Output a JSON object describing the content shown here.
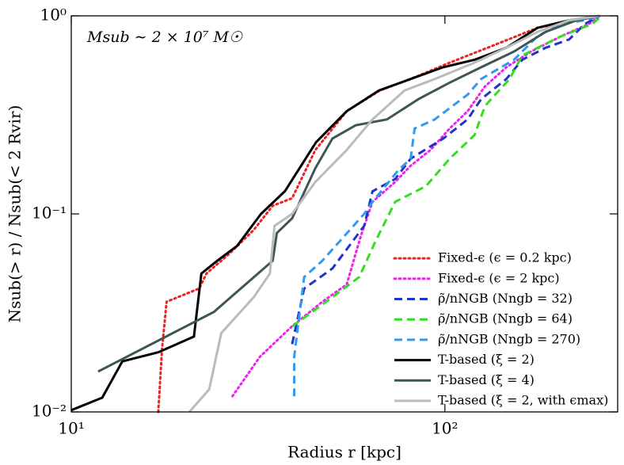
{
  "chart_data": {
    "type": "line",
    "annotation": "Msub ∼ 2 × 10⁷ M☉",
    "x_label": "Radius r [kpc]",
    "y_label": "Nsub(> r) / Nsub(< 2 Rvir)",
    "xlog": true,
    "ylog": true,
    "xlim": [
      10,
      290
    ],
    "ylim": [
      0.01,
      1
    ],
    "xticks": [
      {
        "value": 10,
        "label": "10¹"
      },
      {
        "value": 100,
        "label": "10²"
      }
    ],
    "yticks": [
      {
        "value": 0.01,
        "label": "10⁻²"
      },
      {
        "value": 0.1,
        "label": "10⁻¹"
      },
      {
        "value": 1,
        "label": "10⁰"
      }
    ],
    "legend": "lower right",
    "series": [
      {
        "name": "Fixed-ϵ (ϵ = 0.2 kpc)",
        "color": "#ee2222",
        "linestyle": "dotted",
        "x": [
          17.1,
          17.5,
          18,
          22,
          23,
          26.5,
          30.8,
          34.6,
          39,
          45,
          54.6,
          67,
          81,
          103,
          130,
          177,
          260
        ],
        "values": [
          0.01,
          0.021,
          0.036,
          0.042,
          0.05,
          0.063,
          0.083,
          0.11,
          0.12,
          0.21,
          0.33,
          0.42,
          0.48,
          0.58,
          0.69,
          0.87,
          1
        ]
      },
      {
        "name": "Fixed-ϵ (ϵ = 2 kpc)",
        "color": "#ee22ee",
        "linestyle": "dotted",
        "x": [
          27,
          32,
          38.9,
          47,
          54.6,
          59.4,
          64,
          73.6,
          81,
          91.5,
          103,
          115,
          128,
          146,
          170,
          205,
          243,
          260
        ],
        "values": [
          0.012,
          0.019,
          0.027,
          0.036,
          0.044,
          0.076,
          0.115,
          0.145,
          0.175,
          0.21,
          0.27,
          0.33,
          0.44,
          0.55,
          0.66,
          0.79,
          0.91,
          1
        ]
      },
      {
        "name": "ρ̃/nNGB (Nngb = 32)",
        "color": "#2233cc",
        "linestyle": "dashed",
        "x": [
          39,
          42,
          50,
          60.8,
          64,
          73.6,
          81,
          99,
          115,
          125,
          146,
          161,
          186,
          215,
          237,
          260
        ],
        "values": [
          0.022,
          0.042,
          0.053,
          0.087,
          0.13,
          0.15,
          0.19,
          0.24,
          0.3,
          0.38,
          0.48,
          0.6,
          0.69,
          0.76,
          0.91,
          1
        ]
      },
      {
        "name": "ρ̃/nNGB (Nngb = 64)",
        "color": "#33dd22",
        "linestyle": "dashed",
        "x": [
          39,
          50,
          59,
          65,
          73.6,
          89,
          103,
          120,
          128,
          133,
          149,
          161,
          177,
          205,
          248,
          260
        ],
        "values": [
          0.027,
          0.038,
          0.048,
          0.072,
          0.115,
          0.138,
          0.19,
          0.25,
          0.35,
          0.38,
          0.48,
          0.63,
          0.69,
          0.79,
          0.91,
          0.98
        ]
      },
      {
        "name": "ρ̃/nNGB (Nngb = 270)",
        "color": "#3399ee",
        "linestyle": "dashed",
        "x": [
          39.5,
          39.5,
          42,
          47,
          60.8,
          64,
          75,
          81,
          83,
          94,
          115,
          125,
          153,
          177,
          205,
          237,
          260
        ],
        "values": [
          0.012,
          0.019,
          0.048,
          0.058,
          0.1,
          0.115,
          0.166,
          0.19,
          0.27,
          0.3,
          0.4,
          0.48,
          0.6,
          0.79,
          0.91,
          0.95,
          1
        ]
      },
      {
        "name": "T-based (ξ = 2)",
        "color": "#000000",
        "linestyle": "solid",
        "x": [
          10,
          12.1,
          13.7,
          17.1,
          21.3,
          22.3,
          24.6,
          27.8,
          32.2,
          37.3,
          45.2,
          54.6,
          66.6,
          81,
          98.9,
          120,
          146,
          177,
          215,
          260
        ],
        "values": [
          0.0102,
          0.0118,
          0.018,
          0.02,
          0.024,
          0.05,
          0.058,
          0.069,
          0.1,
          0.13,
          0.23,
          0.33,
          0.42,
          0.48,
          0.55,
          0.6,
          0.69,
          0.87,
          0.95,
          1
        ]
      },
      {
        "name": "T-based (ξ = 4)",
        "color": "#3d5656",
        "linestyle": "solid",
        "x": [
          11.8,
          24.1,
          34.6,
          35.5,
          39,
          45,
          50,
          57.7,
          70,
          85,
          103,
          125,
          153,
          186,
          225,
          260
        ],
        "values": [
          0.016,
          0.032,
          0.058,
          0.08,
          0.095,
          0.17,
          0.24,
          0.28,
          0.3,
          0.38,
          0.46,
          0.55,
          0.66,
          0.83,
          0.95,
          1
        ]
      },
      {
        "name": "T-based (ξ = 2, with ϵmax)",
        "color": "#bbbbbb",
        "linestyle": "solid",
        "x": [
          20.7,
          23.4,
          25.2,
          30.8,
          34,
          35,
          39,
          45,
          54.6,
          64,
          78,
          94,
          120,
          146,
          177,
          215,
          260
        ],
        "values": [
          0.01,
          0.013,
          0.025,
          0.038,
          0.05,
          0.087,
          0.1,
          0.145,
          0.21,
          0.3,
          0.42,
          0.48,
          0.58,
          0.69,
          0.83,
          0.95,
          1
        ]
      }
    ]
  }
}
